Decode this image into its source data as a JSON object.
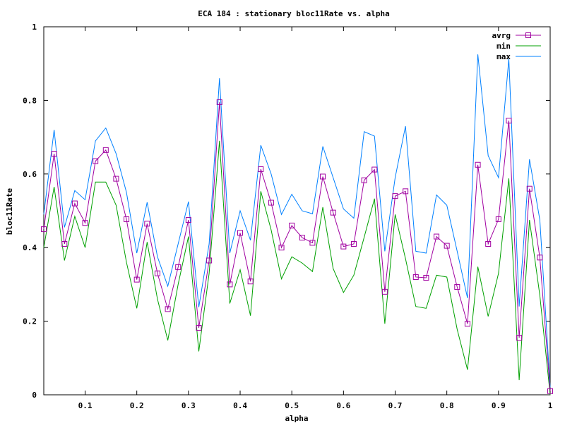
{
  "chart_data": {
    "type": "line",
    "title": "ECA 184 : stationary bloc11Rate vs. alpha",
    "xlabel": "alpha",
    "ylabel": "bloc11Rate",
    "xlim": [
      0.02,
      1.0
    ],
    "ylim": [
      0,
      1
    ],
    "xticks": [
      "0.1",
      "0.2",
      "0.3",
      "0.4",
      "0.5",
      "0.6",
      "0.7",
      "0.8",
      "0.9",
      "1"
    ],
    "xtick_values": [
      0.1,
      0.2,
      0.3,
      0.4,
      0.5,
      0.6,
      0.7,
      0.8,
      0.9,
      1.0
    ],
    "yticks": [
      "0",
      "0.2",
      "0.4",
      "0.6",
      "0.8",
      "1"
    ],
    "ytick_values": [
      0,
      0.2,
      0.4,
      0.6,
      0.8,
      1.0
    ],
    "grid": false,
    "legend_position": "top-right",
    "x": [
      0.02,
      0.04,
      0.06,
      0.08,
      0.1,
      0.12,
      0.14,
      0.16,
      0.18,
      0.2,
      0.22,
      0.24,
      0.26,
      0.28,
      0.3,
      0.32,
      0.34,
      0.36,
      0.38,
      0.4,
      0.42,
      0.44,
      0.46,
      0.48,
      0.5,
      0.52,
      0.54,
      0.56,
      0.58,
      0.6,
      0.62,
      0.64,
      0.66,
      0.68,
      0.7,
      0.72,
      0.74,
      0.76,
      0.78,
      0.8,
      0.82,
      0.84,
      0.86,
      0.88,
      0.9,
      0.92,
      0.94,
      0.96,
      0.98,
      1.0
    ],
    "series": [
      {
        "name": "avrg",
        "color": "#a000a0",
        "marker": "square",
        "values": [
          0.45,
          0.655,
          0.41,
          0.52,
          0.467,
          0.635,
          0.665,
          0.587,
          0.477,
          0.313,
          0.465,
          0.33,
          0.233,
          0.347,
          0.475,
          0.182,
          0.365,
          0.795,
          0.3,
          0.44,
          0.308,
          0.613,
          0.522,
          0.4,
          0.46,
          0.427,
          0.413,
          0.593,
          0.495,
          0.403,
          0.41,
          0.583,
          0.612,
          0.28,
          0.54,
          0.553,
          0.32,
          0.318,
          0.43,
          0.405,
          0.293,
          0.193,
          0.625,
          0.41,
          0.477,
          0.745,
          0.155,
          0.56,
          0.373,
          0.01
        ]
      },
      {
        "name": "min",
        "color": "#00a000",
        "marker": "none",
        "values": [
          0.4,
          0.565,
          0.365,
          0.485,
          0.4,
          0.578,
          0.578,
          0.515,
          0.36,
          0.235,
          0.415,
          0.26,
          0.148,
          0.3,
          0.43,
          0.118,
          0.33,
          0.69,
          0.248,
          0.34,
          0.215,
          0.553,
          0.448,
          0.315,
          0.375,
          0.358,
          0.335,
          0.51,
          0.343,
          0.278,
          0.325,
          0.428,
          0.533,
          0.193,
          0.49,
          0.37,
          0.24,
          0.235,
          0.325,
          0.32,
          0.178,
          0.068,
          0.348,
          0.213,
          0.33,
          0.588,
          0.04,
          0.475,
          0.27,
          0.0
        ]
      },
      {
        "name": "max",
        "color": "#0080ff",
        "marker": "none",
        "values": [
          0.49,
          0.72,
          0.455,
          0.555,
          0.53,
          0.69,
          0.725,
          0.655,
          0.55,
          0.385,
          0.523,
          0.375,
          0.295,
          0.41,
          0.525,
          0.238,
          0.41,
          0.86,
          0.385,
          0.5,
          0.42,
          0.678,
          0.6,
          0.49,
          0.545,
          0.5,
          0.492,
          0.675,
          0.59,
          0.505,
          0.48,
          0.715,
          0.703,
          0.39,
          0.59,
          0.73,
          0.39,
          0.385,
          0.543,
          0.515,
          0.39,
          0.263,
          0.925,
          0.65,
          0.59,
          0.913,
          0.24,
          0.64,
          0.475,
          0.02
        ]
      }
    ]
  }
}
